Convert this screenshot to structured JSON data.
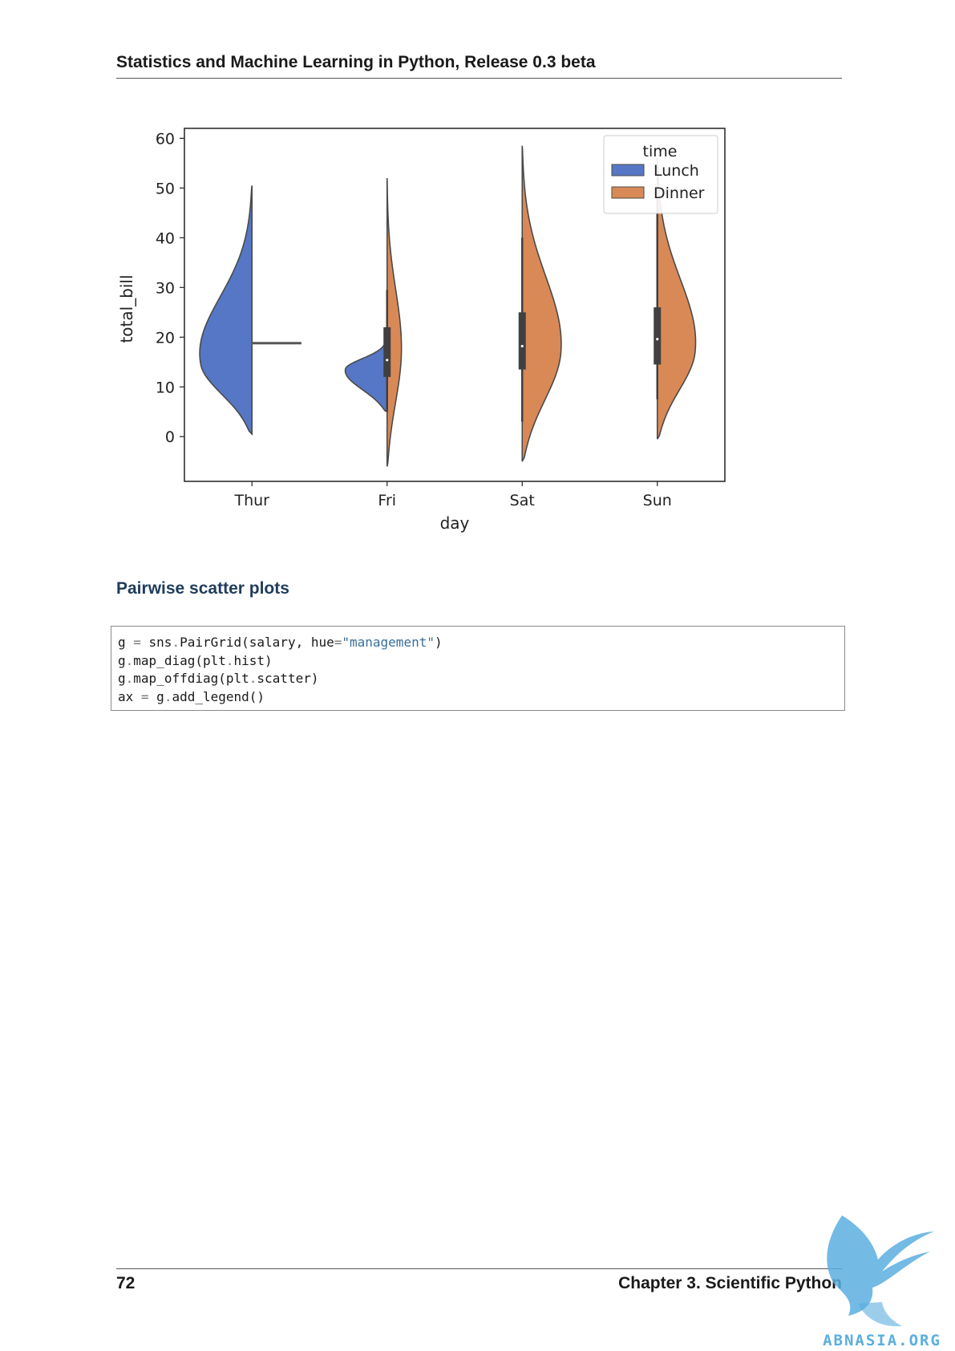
{
  "header": {
    "running_title": "Statistics and Machine Learning in Python, Release 0.3 beta"
  },
  "section": {
    "title": "Pairwise scatter plots"
  },
  "code": {
    "lines": [
      [
        [
          "g ",
          ""
        ],
        [
          "=",
          "op"
        ],
        [
          " sns",
          ""
        ],
        [
          ".",
          "op"
        ],
        [
          "PairGrid(salary, hue",
          ""
        ],
        [
          "=",
          "op"
        ],
        [
          "\"management\"",
          "str"
        ],
        [
          ")",
          ""
        ]
      ],
      [
        [
          "g",
          ""
        ],
        [
          ".",
          "op"
        ],
        [
          "map_diag(plt",
          ""
        ],
        [
          ".",
          "op"
        ],
        [
          "hist)",
          ""
        ]
      ],
      [
        [
          "g",
          ""
        ],
        [
          ".",
          "op"
        ],
        [
          "map_offdiag(plt",
          ""
        ],
        [
          ".",
          "op"
        ],
        [
          "scatter)",
          ""
        ]
      ],
      [
        [
          "ax ",
          ""
        ],
        [
          "=",
          "op"
        ],
        [
          " g",
          ""
        ],
        [
          ".",
          "op"
        ],
        [
          "add_legend()",
          ""
        ]
      ]
    ]
  },
  "footer": {
    "page_number": "72",
    "chapter": "Chapter 3.  Scientific Python"
  },
  "watermark": {
    "text": "ABNASIA.ORG",
    "color": "#5aaee0"
  },
  "chart_data": {
    "type": "violin",
    "split": true,
    "categories": [
      "Thur",
      "Fri",
      "Sat",
      "Sun"
    ],
    "xlabel": "day",
    "ylabel": "total_bill",
    "ylim": [
      -9,
      62
    ],
    "yticks": [
      0,
      10,
      20,
      30,
      40,
      50,
      60
    ],
    "legend": {
      "title": "time",
      "position": "upper right",
      "entries": [
        {
          "name": "Lunch",
          "color": "#5677c5"
        },
        {
          "name": "Dinner",
          "color": "#d98956"
        }
      ]
    },
    "series": [
      {
        "name": "Lunch",
        "color": "#5677c5",
        "violins": [
          {
            "category": "Thur",
            "min": 0.5,
            "max": 50.5,
            "mode": 14.5,
            "width": 1.0
          },
          {
            "category": "Fri",
            "min": 5,
            "max": 20,
            "mode": 13.5,
            "width": 0.75
          }
        ]
      },
      {
        "name": "Dinner",
        "color": "#d98956",
        "violins": [
          {
            "category": "Thur",
            "value": 18.8,
            "single_point": true
          },
          {
            "category": "Fri",
            "min": -6,
            "max": 52,
            "mode": 17,
            "width": 0.26
          },
          {
            "category": "Sat",
            "min": -5,
            "max": 58.5,
            "mode": 17,
            "width": 0.72
          },
          {
            "category": "Sun",
            "min": -0.5,
            "max": 56,
            "mode": 17,
            "width": 0.72
          }
        ]
      }
    ],
    "boxes": [
      {
        "category": "Thur",
        "median": 18.8,
        "q1": 18.8,
        "q3": 18.8,
        "whisker_low": 18.8,
        "whisker_high": 18.8,
        "single_point": true
      },
      {
        "category": "Fri",
        "median": 15.4,
        "q1": 12,
        "q3": 22,
        "whisker_low": 5,
        "whisker_high": 29.5
      },
      {
        "category": "Sat",
        "median": 18.2,
        "q1": 13.5,
        "q3": 25,
        "whisker_low": 3,
        "whisker_high": 40
      },
      {
        "category": "Sun",
        "median": 19.6,
        "q1": 14.5,
        "q3": 26,
        "whisker_low": 7.5,
        "whisker_high": 48
      }
    ]
  }
}
